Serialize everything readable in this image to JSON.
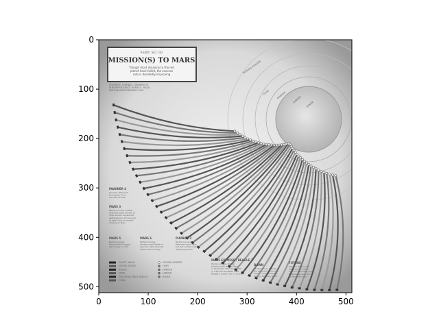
{
  "chart_data": {
    "type": "image",
    "title": "",
    "xlabel": "",
    "ylabel": "",
    "xlim": [
      0,
      512
    ],
    "ylim": [
      512,
      0
    ],
    "x_ticks": [
      "0",
      "100",
      "200",
      "300",
      "400",
      "500"
    ],
    "y_ticks": [
      "0",
      "100",
      "200",
      "300",
      "400",
      "500"
    ],
    "x_tick_values": [
      0,
      100,
      200,
      300,
      400,
      500
    ],
    "y_tick_values": [
      0,
      100,
      200,
      300,
      400,
      500
    ],
    "grid": false,
    "colormap": "gray",
    "image_content": {
      "kicker": "READY, SET, GO",
      "headline": "MISSION(S) TO MARS",
      "subhead_lines": [
        "Though most missions to the red",
        "planet have failed, the success",
        "rate is decidedly improving"
      ],
      "credit_lines": [
        "SOURCES: CORNELL UNIVERSITY,",
        "EUROPEAN SPACE AGENCY, NASA,",
        "NATIONALGEOGRAPHIC.COM"
      ],
      "mission_labels": [
        {
          "name": "MARINER 4",
          "text": [
            "Success. Returned",
            "21 images. First",
            "success for USA"
          ]
        },
        {
          "name": "MARS 3",
          "text": [
            "Partial success. Orbiter",
            "obtained eight months of",
            "data. Lander landed but",
            "gathered only 20 seconds",
            "of data. First successful",
            "landing on Mars"
          ]
        },
        {
          "name": "MARS 5",
          "text": [
            "Partial success.",
            "Returned 60 images;",
            "last 9 days in orbit"
          ]
        },
        {
          "name": "MARS 6",
          "text": [
            "Partial success.",
            "Lander probe failed on",
            "descent, data returned",
            "before hard landing"
          ]
        },
        {
          "name": "PHOBOS 2",
          "text": [
            "Partial success.",
            "Returned some data",
            "but lost contact before",
            "deploying lander"
          ]
        },
        {
          "name": "MARS EXPRESS / BEAGLE 2",
          "text": [
            "Partial success. Orbiter",
            "entered orbit around Mars",
            "in December 2003 and is still",
            "in orbit; accumulated data.",
            "Beagle 2 lander lost on arrival"
          ]
        },
        {
          "name": "DAWN",
          "text": [
            "On the way to a study of",
            "the asteroids Vesta and",
            "Ceres, completed Mars",
            "flyby in February 2009"
          ]
        },
        {
          "name": "FUTURE",
          "text": [
            "Phoenix lander from",
            "last year: The Mars",
            "Science Laboratory and",
            "ExoMars landers will",
            "be launched soon"
          ]
        }
      ],
      "arc_labels": [
        "MISSION POINTER",
        "FLYBY",
        "ORBITER",
        "LANDER",
        "ROVER"
      ],
      "legend_left": [
        "SOVIET UNION",
        "UNITED STATES",
        "RUSSIA",
        "JAPAN",
        "EUROPEAN SPACE AGENCY",
        "CHINA"
      ],
      "legend_right": [
        "MISSION POINTER",
        "FLYBY",
        "ORBITER",
        "LANDER",
        "ROVER"
      ]
    }
  }
}
